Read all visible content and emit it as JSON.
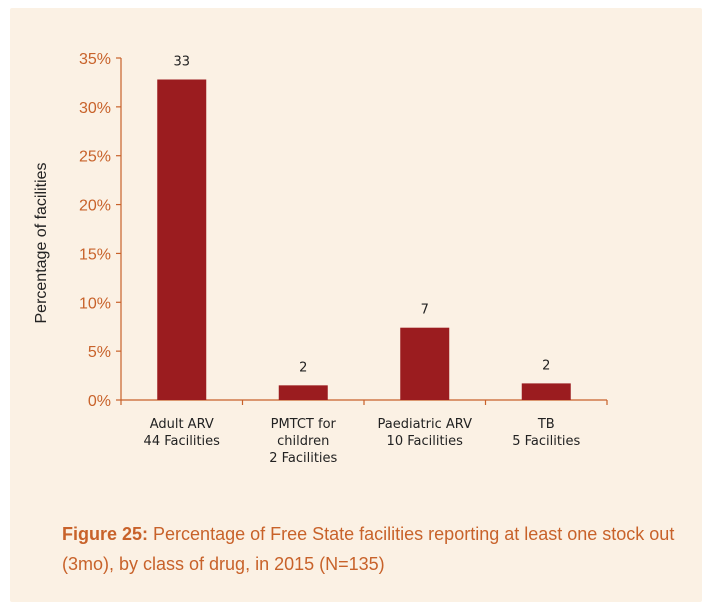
{
  "chart_data": {
    "type": "bar",
    "categories": [
      [
        "Adult ARV",
        "44 Facilities"
      ],
      [
        "PMTCT for",
        "children",
        "2 Facilities"
      ],
      [
        "Paediatric ARV",
        "10 Facilities"
      ],
      [
        "TB",
        "5 Facilities"
      ]
    ],
    "values": [
      32.8,
      1.5,
      7.4,
      1.7
    ],
    "data_labels": [
      "33",
      "2",
      "7",
      "2"
    ],
    "ylabel": "Percentage of facilities",
    "yticks": [
      "0%",
      "5%",
      "10%",
      "15%",
      "20%",
      "25%",
      "30%",
      "35%"
    ],
    "ylim": [
      0,
      35
    ],
    "grid": false,
    "bar_color": "#9b1c1f",
    "axis_color": "#c8622a"
  },
  "caption": {
    "label": "Figure 25:",
    "text": " Percentage of Free State facilities reporting at least one stock out (3mo), by class of drug, in 2015 (N=135)"
  }
}
